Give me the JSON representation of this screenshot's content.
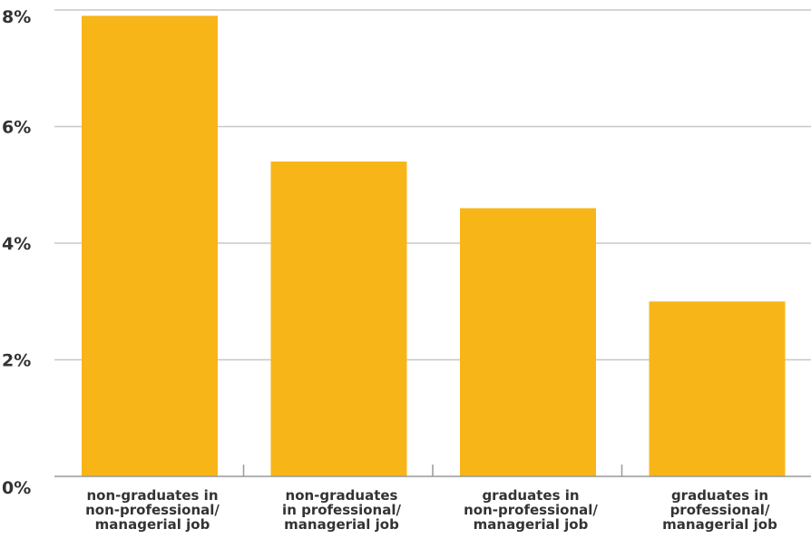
{
  "chart_data": {
    "type": "bar",
    "categories": [
      "non-graduates in non-professional/ managerial job",
      "non-graduates in professional/ managerial job",
      "graduates in non-professional/ managerial job",
      "graduates in professional/ managerial job"
    ],
    "category_lines": [
      [
        "non-graduates in",
        "non-professional/",
        "managerial job"
      ],
      [
        "non-graduates",
        "in professional/",
        "managerial job"
      ],
      [
        "graduates in",
        "non-professional/",
        "managerial job"
      ],
      [
        "graduates in",
        "professional/",
        "managerial job"
      ]
    ],
    "values": [
      7.9,
      5.4,
      4.6,
      3.0
    ],
    "ylim": [
      0,
      8
    ],
    "yticks": [
      0,
      2,
      4,
      6,
      8
    ],
    "ytick_labels": [
      "0%",
      "2%",
      "4%",
      "6%",
      "8%"
    ],
    "title": "",
    "xlabel": "",
    "ylabel": "",
    "grid": true,
    "bar_color": "#F8B518",
    "grid_color": "#c8c8c8",
    "axis_color": "#999999",
    "text_color": "#333333"
  }
}
